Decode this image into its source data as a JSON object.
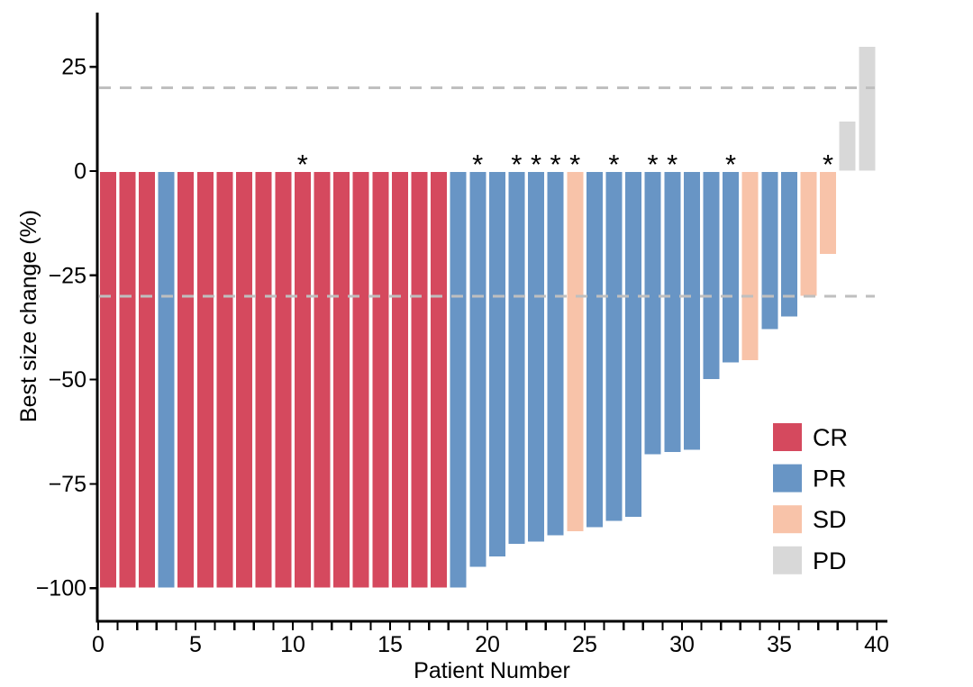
{
  "chart_data": {
    "type": "bar",
    "subtype": "waterfall",
    "title": "",
    "xlabel": "Patient Number",
    "ylabel": "Best size change (%)",
    "xlim": [
      0,
      40.5
    ],
    "ylim": [
      -108,
      38
    ],
    "grid": false,
    "x_axis": {
      "min": 0,
      "max": 40,
      "minor_step": 1,
      "major_ticks": [
        0,
        5,
        10,
        15,
        20,
        25,
        30,
        35,
        40
      ]
    },
    "y_axis": {
      "ticks": [
        {
          "value": 25,
          "label": "25"
        },
        {
          "value": 0,
          "label": "0"
        },
        {
          "value": -25,
          "label": "−25"
        },
        {
          "value": -50,
          "label": "−50"
        },
        {
          "value": -75,
          "label": "−75"
        },
        {
          "value": -100,
          "label": "−100"
        }
      ]
    },
    "reference_lines": {
      "values": [
        20,
        -30
      ],
      "style": "dashed",
      "color": "#BFBFBF"
    },
    "significance_marker": "*",
    "legend": {
      "position": "inside-right",
      "items": [
        {
          "label": "CR",
          "color": "#D5495E"
        },
        {
          "label": "PR",
          "color": "#6895C5"
        },
        {
          "label": "SD",
          "color": "#F8C3A9"
        },
        {
          "label": "PD",
          "color": "#D8D8D8"
        }
      ]
    },
    "patients": [
      {
        "n": 1,
        "best_change_pct": -100,
        "response": "CR",
        "significant": false
      },
      {
        "n": 2,
        "best_change_pct": -100,
        "response": "CR",
        "significant": false
      },
      {
        "n": 3,
        "best_change_pct": -100,
        "response": "CR",
        "significant": false
      },
      {
        "n": 4,
        "best_change_pct": -100,
        "response": "PR",
        "significant": false
      },
      {
        "n": 5,
        "best_change_pct": -100,
        "response": "CR",
        "significant": false
      },
      {
        "n": 6,
        "best_change_pct": -100,
        "response": "CR",
        "significant": false
      },
      {
        "n": 7,
        "best_change_pct": -100,
        "response": "CR",
        "significant": false
      },
      {
        "n": 8,
        "best_change_pct": -100,
        "response": "CR",
        "significant": false
      },
      {
        "n": 9,
        "best_change_pct": -100,
        "response": "CR",
        "significant": false
      },
      {
        "n": 10,
        "best_change_pct": -100,
        "response": "CR",
        "significant": false
      },
      {
        "n": 11,
        "best_change_pct": -100,
        "response": "CR",
        "significant": true
      },
      {
        "n": 12,
        "best_change_pct": -100,
        "response": "CR",
        "significant": false
      },
      {
        "n": 13,
        "best_change_pct": -100,
        "response": "CR",
        "significant": false
      },
      {
        "n": 14,
        "best_change_pct": -100,
        "response": "CR",
        "significant": false
      },
      {
        "n": 15,
        "best_change_pct": -100,
        "response": "CR",
        "significant": false
      },
      {
        "n": 16,
        "best_change_pct": -100,
        "response": "CR",
        "significant": false
      },
      {
        "n": 17,
        "best_change_pct": -100,
        "response": "CR",
        "significant": false
      },
      {
        "n": 18,
        "best_change_pct": -100,
        "response": "CR",
        "significant": false
      },
      {
        "n": 19,
        "best_change_pct": -100,
        "response": "PR",
        "significant": false
      },
      {
        "n": 20,
        "best_change_pct": -95,
        "response": "PR",
        "significant": true
      },
      {
        "n": 21,
        "best_change_pct": -92.5,
        "response": "PR",
        "significant": false
      },
      {
        "n": 22,
        "best_change_pct": -89.5,
        "response": "PR",
        "significant": true
      },
      {
        "n": 23,
        "best_change_pct": -89,
        "response": "PR",
        "significant": true
      },
      {
        "n": 24,
        "best_change_pct": -87.5,
        "response": "PR",
        "significant": true
      },
      {
        "n": 25,
        "best_change_pct": -86.5,
        "response": "SD",
        "significant": true
      },
      {
        "n": 26,
        "best_change_pct": -85.5,
        "response": "PR",
        "significant": false
      },
      {
        "n": 27,
        "best_change_pct": -84,
        "response": "PR",
        "significant": true
      },
      {
        "n": 28,
        "best_change_pct": -83,
        "response": "PR",
        "significant": false
      },
      {
        "n": 29,
        "best_change_pct": -68,
        "response": "PR",
        "significant": true
      },
      {
        "n": 30,
        "best_change_pct": -67.5,
        "response": "PR",
        "significant": true
      },
      {
        "n": 31,
        "best_change_pct": -67,
        "response": "PR",
        "significant": false
      },
      {
        "n": 32,
        "best_change_pct": -50,
        "response": "PR",
        "significant": false
      },
      {
        "n": 33,
        "best_change_pct": -46,
        "response": "PR",
        "significant": true
      },
      {
        "n": 34,
        "best_change_pct": -45.5,
        "response": "SD",
        "significant": false
      },
      {
        "n": 35,
        "best_change_pct": -38,
        "response": "PR",
        "significant": false
      },
      {
        "n": 36,
        "best_change_pct": -35,
        "response": "PR",
        "significant": false
      },
      {
        "n": 37,
        "best_change_pct": -30,
        "response": "SD",
        "significant": false
      },
      {
        "n": 38,
        "best_change_pct": -20,
        "response": "SD",
        "significant": true
      },
      {
        "n": 39,
        "best_change_pct": 12,
        "response": "PD",
        "significant": false
      },
      {
        "n": 40,
        "best_change_pct": 30,
        "response": "PD",
        "significant": false
      }
    ]
  }
}
